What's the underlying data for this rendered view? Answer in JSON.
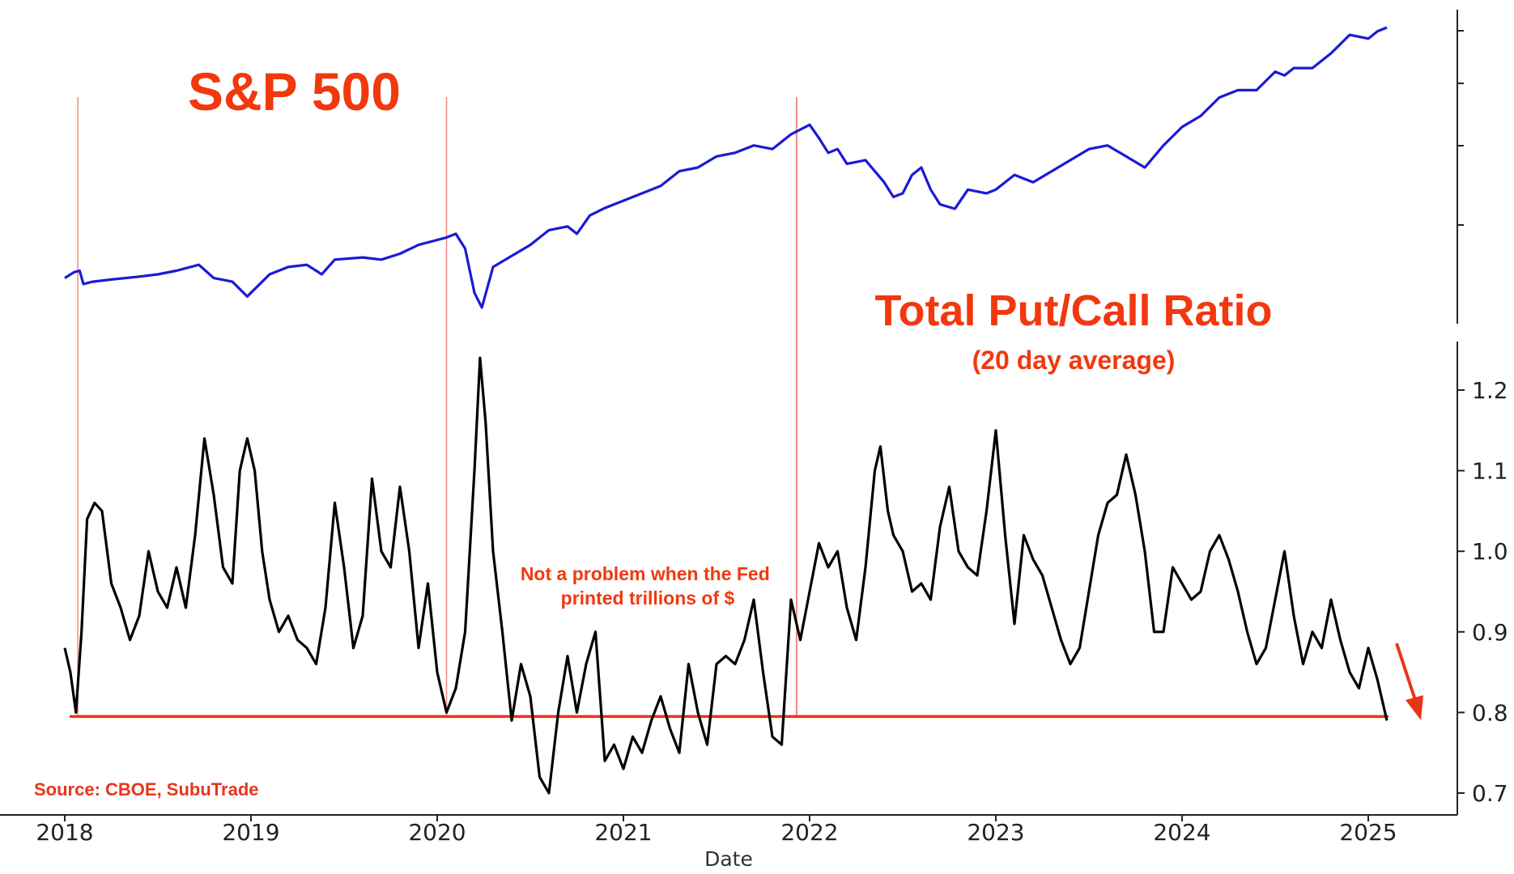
{
  "chart_data": {
    "type": "line",
    "titles": {
      "top_series": "S&P 500",
      "bottom_series": "Total Put/Call Ratio",
      "bottom_subtitle": "(20 day average)"
    },
    "annotation": "Not a problem when the Fed printed trillions of $",
    "source": "Source: CBOE, SubuTrade",
    "xlabel": "Date",
    "x_ticks": [
      "2018",
      "2019",
      "2020",
      "2021",
      "2022",
      "2023",
      "2024",
      "2025"
    ],
    "xlim": [
      2018,
      2025.45
    ],
    "y_ticks_put_call": [
      "0.7",
      "0.8",
      "0.9",
      "1.0",
      "1.1",
      "1.2"
    ],
    "ylim_put_call": [
      0.68,
      1.26
    ],
    "threshold": 0.795,
    "markers": [
      "2018-02",
      "2020-01",
      "2021-12"
    ],
    "series": [
      {
        "name": "S&P 500",
        "color": "#1a1ad6",
        "axis": "upper (unlabeled)",
        "x": [
          2018.0,
          2018.05,
          2018.08,
          2018.1,
          2018.15,
          2018.25,
          2018.4,
          2018.5,
          2018.6,
          2018.72,
          2018.8,
          2018.9,
          2018.98,
          2019.1,
          2019.2,
          2019.3,
          2019.38,
          2019.45,
          2019.6,
          2019.7,
          2019.8,
          2019.9,
          2020.05,
          2020.1,
          2020.15,
          2020.2,
          2020.24,
          2020.3,
          2020.4,
          2020.5,
          2020.6,
          2020.7,
          2020.75,
          2020.82,
          2020.9,
          2021.0,
          2021.1,
          2021.2,
          2021.3,
          2021.4,
          2021.5,
          2021.6,
          2021.7,
          2021.8,
          2021.9,
          2022.0,
          2022.05,
          2022.1,
          2022.15,
          2022.2,
          2022.3,
          2022.4,
          2022.45,
          2022.5,
          2022.55,
          2022.6,
          2022.65,
          2022.7,
          2022.78,
          2022.85,
          2022.95,
          2023.0,
          2023.1,
          2023.2,
          2023.3,
          2023.4,
          2023.5,
          2023.6,
          2023.7,
          2023.8,
          2023.9,
          2024.0,
          2024.1,
          2024.2,
          2024.3,
          2024.4,
          2024.5,
          2024.55,
          2024.6,
          2024.7,
          2024.8,
          2024.9,
          2025.0,
          2025.05,
          2025.1
        ],
        "y": [
          2700,
          2780,
          2800,
          2620,
          2650,
          2680,
          2720,
          2750,
          2800,
          2880,
          2700,
          2650,
          2450,
          2750,
          2850,
          2880,
          2750,
          2950,
          2980,
          2950,
          3030,
          3150,
          3250,
          3300,
          3100,
          2500,
          2300,
          2850,
          3000,
          3150,
          3350,
          3400,
          3300,
          3550,
          3650,
          3750,
          3850,
          3950,
          4150,
          4200,
          4350,
          4400,
          4500,
          4450,
          4650,
          4780,
          4600,
          4400,
          4450,
          4250,
          4300,
          4000,
          3800,
          3850,
          4100,
          4200,
          3900,
          3700,
          3640,
          3900,
          3850,
          3900,
          4100,
          4000,
          4150,
          4300,
          4450,
          4500,
          4350,
          4200,
          4500,
          4750,
          4900,
          5150,
          5250,
          5250,
          5500,
          5450,
          5550,
          5550,
          5750,
          6000,
          5950,
          6050,
          6100
        ]
      },
      {
        "name": "Total Put/Call Ratio",
        "color": "#000000",
        "axis": "lower (right)",
        "x": [
          2018.0,
          2018.03,
          2018.06,
          2018.09,
          2018.12,
          2018.16,
          2018.2,
          2018.25,
          2018.3,
          2018.35,
          2018.4,
          2018.45,
          2018.5,
          2018.55,
          2018.6,
          2018.65,
          2018.7,
          2018.75,
          2018.8,
          2018.85,
          2018.9,
          2018.94,
          2018.98,
          2019.02,
          2019.06,
          2019.1,
          2019.15,
          2019.2,
          2019.25,
          2019.3,
          2019.35,
          2019.4,
          2019.45,
          2019.5,
          2019.55,
          2019.6,
          2019.65,
          2019.7,
          2019.75,
          2019.8,
          2019.85,
          2019.9,
          2019.95,
          2020.0,
          2020.05,
          2020.1,
          2020.15,
          2020.2,
          2020.23,
          2020.26,
          2020.3,
          2020.35,
          2020.4,
          2020.45,
          2020.5,
          2020.55,
          2020.6,
          2020.65,
          2020.7,
          2020.75,
          2020.8,
          2020.85,
          2020.9,
          2020.95,
          2021.0,
          2021.05,
          2021.1,
          2021.15,
          2021.2,
          2021.25,
          2021.3,
          2021.35,
          2021.4,
          2021.45,
          2021.5,
          2021.55,
          2021.6,
          2021.65,
          2021.7,
          2021.75,
          2021.8,
          2021.85,
          2021.9,
          2021.95,
          2022.0,
          2022.05,
          2022.1,
          2022.15,
          2022.2,
          2022.25,
          2022.3,
          2022.35,
          2022.38,
          2022.42,
          2022.45,
          2022.5,
          2022.55,
          2022.6,
          2022.65,
          2022.7,
          2022.75,
          2022.8,
          2022.85,
          2022.9,
          2022.95,
          2023.0,
          2023.05,
          2023.1,
          2023.15,
          2023.2,
          2023.25,
          2023.3,
          2023.35,
          2023.4,
          2023.45,
          2023.5,
          2023.55,
          2023.6,
          2023.65,
          2023.7,
          2023.75,
          2023.8,
          2023.85,
          2023.9,
          2023.95,
          2024.0,
          2024.05,
          2024.1,
          2024.15,
          2024.2,
          2024.25,
          2024.3,
          2024.35,
          2024.4,
          2024.45,
          2024.5,
          2024.55,
          2024.6,
          2024.65,
          2024.7,
          2024.75,
          2024.8,
          2024.85,
          2024.9,
          2024.95,
          2025.0,
          2025.05,
          2025.1
        ],
        "y": [
          0.88,
          0.85,
          0.8,
          0.9,
          1.04,
          1.06,
          1.05,
          0.96,
          0.93,
          0.89,
          0.92,
          1.0,
          0.95,
          0.93,
          0.98,
          0.93,
          1.02,
          1.14,
          1.07,
          0.98,
          0.96,
          1.1,
          1.14,
          1.1,
          1.0,
          0.94,
          0.9,
          0.92,
          0.89,
          0.88,
          0.86,
          0.93,
          1.06,
          0.98,
          0.88,
          0.92,
          1.09,
          1.0,
          0.98,
          1.08,
          1.0,
          0.88,
          0.96,
          0.85,
          0.8,
          0.83,
          0.9,
          1.1,
          1.24,
          1.16,
          1.0,
          0.9,
          0.79,
          0.86,
          0.82,
          0.72,
          0.7,
          0.8,
          0.87,
          0.8,
          0.86,
          0.9,
          0.74,
          0.76,
          0.73,
          0.77,
          0.75,
          0.79,
          0.82,
          0.78,
          0.75,
          0.86,
          0.8,
          0.76,
          0.86,
          0.87,
          0.86,
          0.89,
          0.94,
          0.85,
          0.77,
          0.76,
          0.94,
          0.89,
          0.95,
          1.01,
          0.98,
          1.0,
          0.93,
          0.89,
          0.98,
          1.1,
          1.13,
          1.05,
          1.02,
          1.0,
          0.95,
          0.96,
          0.94,
          1.03,
          1.08,
          1.0,
          0.98,
          0.97,
          1.05,
          1.15,
          1.02,
          0.91,
          1.02,
          0.99,
          0.97,
          0.93,
          0.89,
          0.86,
          0.88,
          0.95,
          1.02,
          1.06,
          1.07,
          1.12,
          1.07,
          1.0,
          0.9,
          0.9,
          0.98,
          0.96,
          0.94,
          0.95,
          1.0,
          1.02,
          0.99,
          0.95,
          0.9,
          0.86,
          0.88,
          0.94,
          1.0,
          0.92,
          0.86,
          0.9,
          0.88,
          0.94,
          0.89,
          0.85,
          0.83,
          0.88,
          0.84,
          0.79
        ]
      }
    ]
  }
}
